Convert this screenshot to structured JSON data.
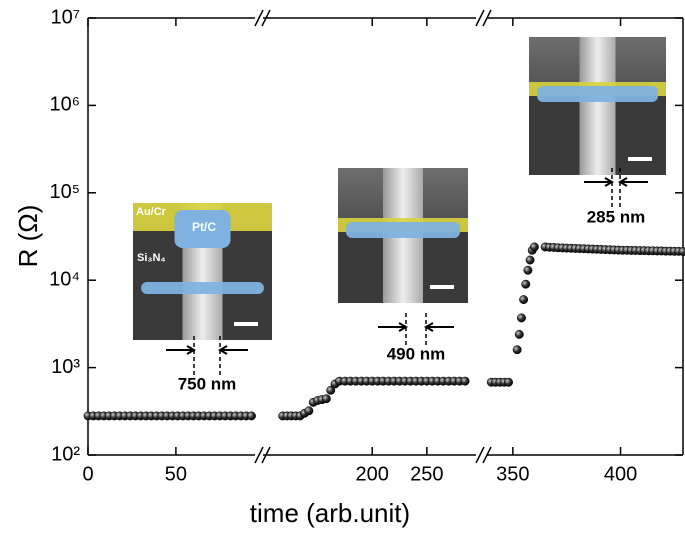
{
  "chart_data": {
    "type": "scatter",
    "xlabel": "time (arb.unit)",
    "ylabel": "R (Ω)",
    "yscale": "log",
    "color": "#000000",
    "ylim": [
      100,
      10000000
    ],
    "yticks": [
      {
        "value": 100,
        "label": "10²"
      },
      {
        "value": 1000,
        "label": "10³"
      },
      {
        "value": 10000,
        "label": "10⁴"
      },
      {
        "value": 100000,
        "label": "10⁵"
      },
      {
        "value": 1000000,
        "label": "10⁶"
      },
      {
        "value": 10000000,
        "label": "10⁷"
      }
    ],
    "segments": [
      {
        "xlim": [
          0,
          95
        ],
        "xticks": [
          0,
          50
        ],
        "x": [
          0,
          3,
          6,
          9,
          12,
          15,
          18,
          21,
          24,
          27,
          30,
          33,
          36,
          39,
          42,
          45,
          48,
          51,
          54,
          57,
          60,
          63,
          66,
          69,
          72,
          75,
          78,
          81,
          84,
          87,
          90,
          93
        ],
        "values": [
          280,
          280,
          280,
          280,
          280,
          280,
          280,
          280,
          280,
          280,
          280,
          280,
          280,
          280,
          280,
          280,
          280,
          280,
          280,
          280,
          280,
          280,
          280,
          280,
          280,
          280,
          280,
          280,
          280,
          280,
          280,
          280
        ]
      },
      {
        "xlim": [
          100,
          295
        ],
        "xticks": [
          200,
          250
        ],
        "x": [
          118,
          122,
          126,
          130,
          134,
          138,
          142,
          146,
          150,
          154,
          158,
          162,
          166,
          170,
          175,
          180,
          185,
          190,
          195,
          200,
          205,
          210,
          215,
          220,
          225,
          230,
          235,
          240,
          245,
          250,
          255,
          260,
          265,
          270,
          275,
          280,
          285
        ],
        "values": [
          280,
          280,
          280,
          280,
          280,
          300,
          320,
          400,
          420,
          430,
          440,
          550,
          650,
          700,
          700,
          700,
          700,
          700,
          700,
          700,
          700,
          700,
          700,
          700,
          700,
          700,
          700,
          700,
          700,
          700,
          700,
          700,
          700,
          700,
          700,
          700,
          700
        ]
      },
      {
        "xlim": [
          338,
          429
        ],
        "xticks": [
          350,
          400
        ],
        "x": [
          340,
          342,
          344,
          346,
          348,
          352,
          353,
          354,
          355,
          356,
          357,
          358,
          359,
          360,
          365,
          367,
          369,
          371,
          373,
          375,
          377,
          379,
          381,
          383,
          385,
          387,
          389,
          391,
          393,
          395,
          397,
          399,
          401,
          403,
          405,
          407,
          409,
          411,
          413,
          415,
          417,
          419,
          421,
          423,
          425,
          427,
          429
        ],
        "values": [
          680,
          680,
          680,
          680,
          680,
          1600,
          2400,
          3700,
          6000,
          9000,
          13000,
          17000,
          22000,
          24000,
          24000,
          23800,
          23700,
          23500,
          23400,
          23300,
          23200,
          23100,
          23000,
          22900,
          22800,
          22700,
          22600,
          22500,
          22400,
          22300,
          22200,
          22100,
          22000,
          22000,
          21900,
          21900,
          21800,
          21800,
          21700,
          21700,
          21600,
          21600,
          21500,
          21500,
          21400,
          21400,
          21300
        ]
      }
    ],
    "annotations": {
      "au_cr": "Au/Cr",
      "pt_c": "Pt/C",
      "si3n4": "Si₃N₄",
      "width_1": "750 nm",
      "width_2": "490 nm",
      "width_3": "285 nm"
    }
  }
}
